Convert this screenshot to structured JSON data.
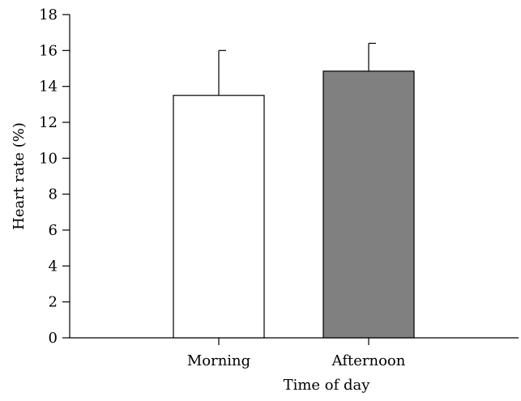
{
  "chart_data": {
    "type": "bar",
    "title": "",
    "xlabel": "Time of day",
    "ylabel": "Heart rate (%)",
    "categories": [
      "Morning",
      "Afternoon"
    ],
    "values": [
      13.5,
      14.85
    ],
    "error_upper": [
      16.0,
      16.4
    ],
    "bar_colors": [
      "#ffffff",
      "#808080"
    ],
    "ylim": [
      0,
      18
    ],
    "yticks": [
      0,
      2,
      4,
      6,
      8,
      10,
      12,
      14,
      16,
      18
    ],
    "grid": false,
    "legend": "none"
  }
}
